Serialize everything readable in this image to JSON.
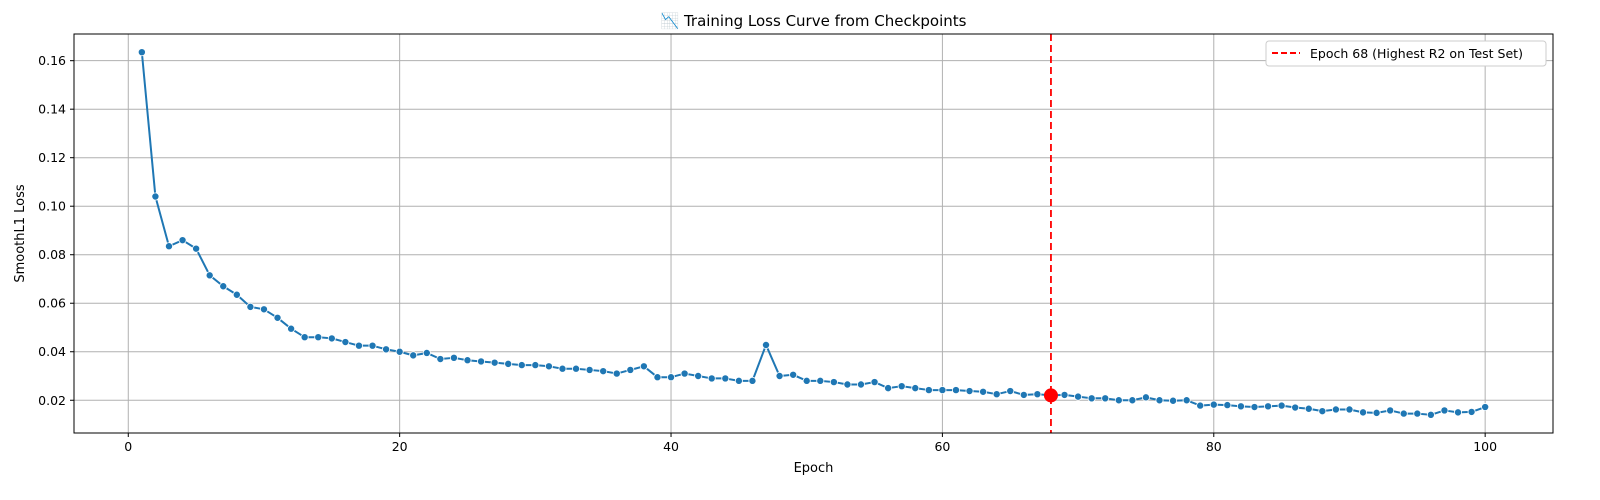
{
  "chart_data": {
    "type": "line",
    "title": "📉 Training Loss Curve from Checkpoints",
    "xlabel": "Epoch",
    "ylabel": "SmoothL1 Loss",
    "xlim": [
      -4,
      105
    ],
    "ylim": [
      0.0065,
      0.171
    ],
    "x_ticks": [
      0,
      20,
      40,
      60,
      80,
      100
    ],
    "y_ticks": [
      0.02,
      0.04,
      0.06,
      0.08,
      0.1,
      0.12,
      0.14,
      0.16
    ],
    "y_tick_labels": [
      "0.02",
      "0.04",
      "0.06",
      "0.08",
      "0.10",
      "0.12",
      "0.14",
      "0.16"
    ],
    "grid": true,
    "legend_position": "top-right",
    "series": [
      {
        "color": "#1f77b4",
        "x": [
          1,
          2,
          3,
          4,
          5,
          6,
          7,
          8,
          9,
          10,
          11,
          12,
          13,
          14,
          15,
          16,
          17,
          18,
          19,
          20,
          21,
          22,
          23,
          24,
          25,
          26,
          27,
          28,
          29,
          30,
          31,
          32,
          33,
          34,
          35,
          36,
          37,
          38,
          39,
          40,
          41,
          42,
          43,
          44,
          45,
          46,
          47,
          48,
          49,
          50,
          51,
          52,
          53,
          54,
          55,
          56,
          57,
          58,
          59,
          60,
          61,
          62,
          63,
          64,
          65,
          66,
          67,
          68,
          69,
          70,
          71,
          72,
          73,
          74,
          75,
          76,
          77,
          78,
          79,
          80,
          81,
          82,
          83,
          84,
          85,
          86,
          87,
          88,
          89,
          90,
          91,
          92,
          93,
          94,
          95,
          96,
          97,
          98,
          99,
          100
        ],
        "values": [
          0.1635,
          0.104,
          0.0835,
          0.086,
          0.0825,
          0.0715,
          0.067,
          0.0635,
          0.0585,
          0.0575,
          0.054,
          0.0495,
          0.046,
          0.046,
          0.0455,
          0.044,
          0.0425,
          0.0425,
          0.041,
          0.04,
          0.0385,
          0.0395,
          0.037,
          0.0375,
          0.0365,
          0.036,
          0.0355,
          0.035,
          0.0345,
          0.0345,
          0.034,
          0.033,
          0.033,
          0.0325,
          0.032,
          0.031,
          0.0325,
          0.034,
          0.0295,
          0.0295,
          0.031,
          0.03,
          0.029,
          0.029,
          0.028,
          0.028,
          0.0428,
          0.03,
          0.0305,
          0.028,
          0.028,
          0.0275,
          0.0265,
          0.0265,
          0.0275,
          0.025,
          0.0258,
          0.025,
          0.0242,
          0.0242,
          0.0242,
          0.0238,
          0.0235,
          0.0225,
          0.0238,
          0.0222,
          0.0225,
          0.022,
          0.0222,
          0.0215,
          0.0208,
          0.0208,
          0.02,
          0.02,
          0.0212,
          0.02,
          0.0198,
          0.02,
          0.0178,
          0.0182,
          0.018,
          0.0175,
          0.0172,
          0.0175,
          0.0178,
          0.017,
          0.0165,
          0.0155,
          0.0162,
          0.0162,
          0.015,
          0.0148,
          0.0158,
          0.0145,
          0.0145,
          0.014,
          0.0158,
          0.015,
          0.0152,
          0.0172
        ]
      }
    ],
    "highlight": {
      "epoch": 68,
      "value": 0.022,
      "line_color": "#ff0000",
      "marker_color": "#ff0000",
      "legend_label": "Epoch 68 (Highest R2 on Test Set)"
    }
  }
}
